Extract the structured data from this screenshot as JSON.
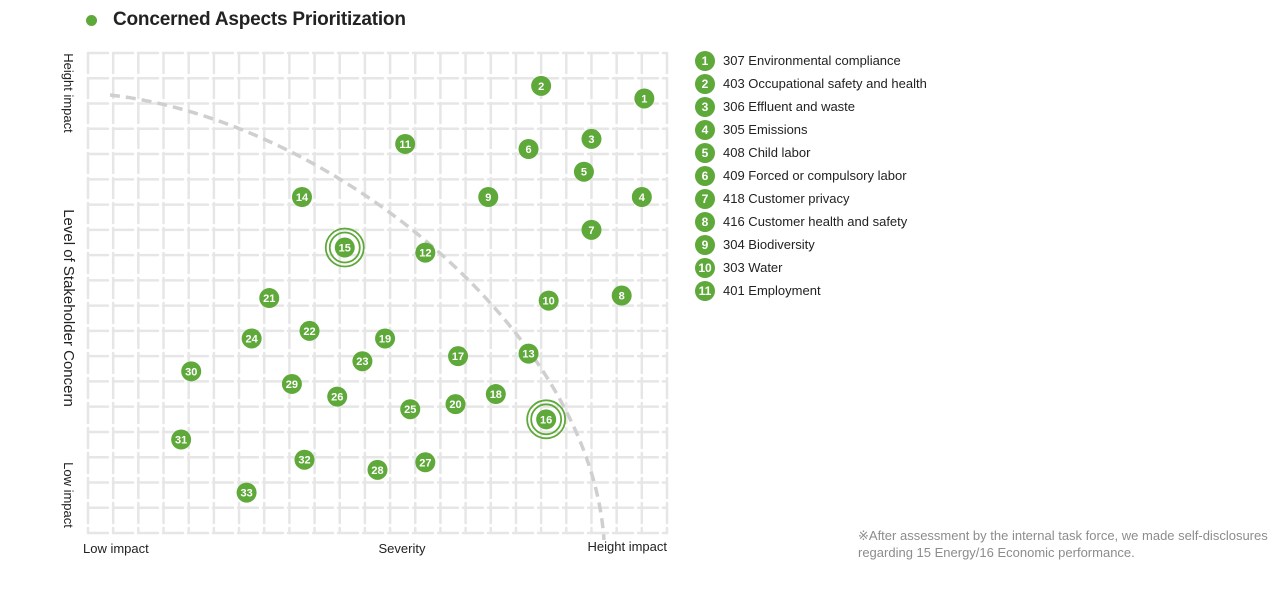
{
  "title": "Concerned Aspects Prioritization",
  "colors": {
    "accent": "#5ea93a",
    "grid": "#e6e6e6",
    "curve": "#cfcfcf",
    "note": "#8c8c8c"
  },
  "chart_data": {
    "type": "scatter",
    "xlabel": "Severity",
    "ylabel": "Level of Stakeholder Concern",
    "x_ticks": {
      "low": "Low impact",
      "high": "Height impact"
    },
    "y_ticks": {
      "high": "Height impact",
      "low": "Low impact"
    },
    "xlim": [
      0,
      23
    ],
    "ylim": [
      0,
      19
    ],
    "grid": true,
    "points": [
      {
        "label": "1",
        "x": 22.1,
        "y": 17.2
      },
      {
        "label": "2",
        "x": 18.0,
        "y": 17.7
      },
      {
        "label": "3",
        "x": 20.0,
        "y": 15.6
      },
      {
        "label": "4",
        "x": 22.0,
        "y": 13.3
      },
      {
        "label": "5",
        "x": 19.7,
        "y": 14.3
      },
      {
        "label": "6",
        "x": 17.5,
        "y": 15.2
      },
      {
        "label": "7",
        "x": 20.0,
        "y": 12.0
      },
      {
        "label": "8",
        "x": 21.2,
        "y": 9.4
      },
      {
        "label": "9",
        "x": 15.9,
        "y": 13.3
      },
      {
        "label": "10",
        "x": 18.3,
        "y": 9.2
      },
      {
        "label": "11",
        "x": 12.6,
        "y": 15.4
      },
      {
        "label": "12",
        "x": 13.4,
        "y": 11.1
      },
      {
        "label": "13",
        "x": 17.5,
        "y": 7.1
      },
      {
        "label": "14",
        "x": 8.5,
        "y": 13.3
      },
      {
        "label": "15",
        "x": 10.2,
        "y": 11.3,
        "highlight": true
      },
      {
        "label": "16",
        "x": 18.2,
        "y": 4.5,
        "highlight": true
      },
      {
        "label": "17",
        "x": 14.7,
        "y": 7.0
      },
      {
        "label": "18",
        "x": 16.2,
        "y": 5.5
      },
      {
        "label": "19",
        "x": 11.8,
        "y": 7.7
      },
      {
        "label": "20",
        "x": 14.6,
        "y": 5.1
      },
      {
        "label": "21",
        "x": 7.2,
        "y": 9.3
      },
      {
        "label": "22",
        "x": 8.8,
        "y": 8.0
      },
      {
        "label": "23",
        "x": 10.9,
        "y": 6.8
      },
      {
        "label": "24",
        "x": 6.5,
        "y": 7.7
      },
      {
        "label": "25",
        "x": 12.8,
        "y": 4.9
      },
      {
        "label": "26",
        "x": 9.9,
        "y": 5.4
      },
      {
        "label": "27",
        "x": 13.4,
        "y": 2.8
      },
      {
        "label": "28",
        "x": 11.5,
        "y": 2.5
      },
      {
        "label": "29",
        "x": 8.1,
        "y": 5.9
      },
      {
        "label": "30",
        "x": 4.1,
        "y": 6.4
      },
      {
        "label": "31",
        "x": 3.7,
        "y": 3.7
      },
      {
        "label": "32",
        "x": 8.6,
        "y": 2.9
      },
      {
        "label": "33",
        "x": 6.3,
        "y": 1.6
      }
    ]
  },
  "legend": [
    {
      "num": "1",
      "text": "307 Environmental compliance"
    },
    {
      "num": "2",
      "text": "403 Occupational safety and health"
    },
    {
      "num": "3",
      "text": "306 Effluent and waste"
    },
    {
      "num": "4",
      "text": "305 Emissions"
    },
    {
      "num": "5",
      "text": "408 Child labor"
    },
    {
      "num": "6",
      "text": "409 Forced or compulsory labor"
    },
    {
      "num": "7",
      "text": "418 Customer privacy"
    },
    {
      "num": "8",
      "text": "416 Customer health and safety"
    },
    {
      "num": "9",
      "text": "304 Biodiversity"
    },
    {
      "num": "10",
      "text": "303 Water"
    },
    {
      "num": "11",
      "text": "401 Employment"
    }
  ],
  "note": "※After assessment by the internal task force, we made self-disclosures regarding 15 Energy/16 Economic performance."
}
